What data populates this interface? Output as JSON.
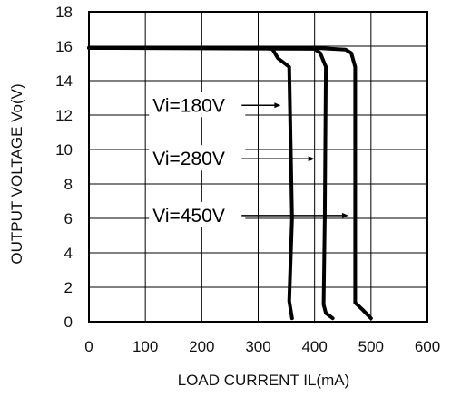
{
  "chart_data": {
    "type": "line",
    "xlabel": "LOAD CURRENT IL(mA)",
    "ylabel": "OUTPUT VOLTAGE Vo(V)",
    "xlim": [
      0,
      600
    ],
    "ylim": [
      0,
      18
    ],
    "xticks": [
      0,
      100,
      200,
      300,
      400,
      500,
      600
    ],
    "yticks": [
      0,
      2,
      4,
      6,
      8,
      10,
      12,
      14,
      16,
      18
    ],
    "grid": true,
    "series": [
      {
        "name": "Vi=180V",
        "x": [
          0,
          300,
          325,
          335,
          355,
          360,
          355,
          360
        ],
        "y": [
          15.9,
          15.9,
          15.85,
          15.3,
          14.8,
          6,
          1.2,
          0.2
        ]
      },
      {
        "name": "Vi=280V",
        "x": [
          0,
          400,
          410,
          420,
          418,
          416,
          420,
          432
        ],
        "y": [
          15.9,
          15.85,
          15.6,
          14.8,
          6,
          1,
          0.5,
          0.2
        ]
      },
      {
        "name": "Vi=450V",
        "x": [
          0,
          400,
          455,
          465,
          472,
          472,
          485,
          500
        ],
        "y": [
          15.9,
          15.9,
          15.8,
          15.6,
          14.8,
          1.1,
          0.7,
          0.2
        ]
      }
    ],
    "annotations": [
      {
        "text": "Vi=180V",
        "x": 113,
        "y": 12.3,
        "arrow_to_x": 340,
        "arrow_to_y": 12.3
      },
      {
        "text": "Vi=280V",
        "x": 113,
        "y": 9.2,
        "arrow_to_x": 400,
        "arrow_to_y": 9.2
      },
      {
        "text": "Vi=450V",
        "x": 113,
        "y": 5.9,
        "arrow_to_x": 460,
        "arrow_to_y": 5.9
      }
    ]
  }
}
